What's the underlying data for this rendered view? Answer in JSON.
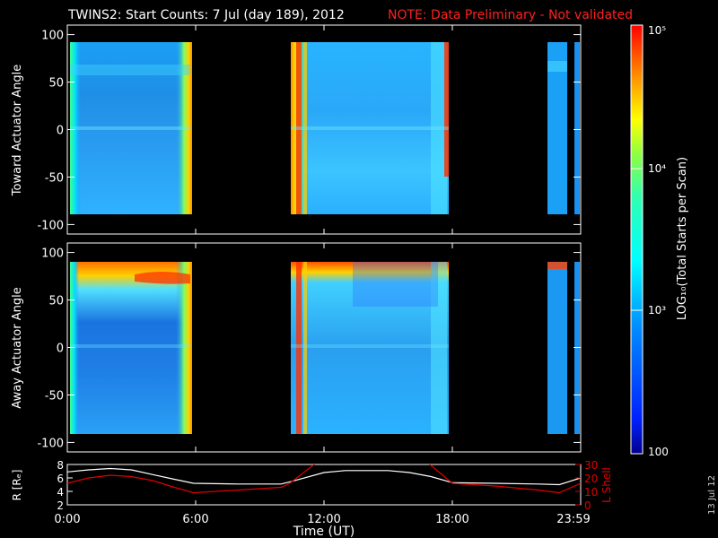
{
  "title": {
    "main": "TWINS2: Start Counts:  7 Jul (day 189), 2012",
    "note": "NOTE: Data Preliminary - Not validated",
    "note_color": "#ff2020"
  },
  "side_label": "13 Jul 12",
  "colorbar": {
    "label": "LOG₁₀(Total Starts per Scan)",
    "ticks": [
      "10⁵",
      "10⁴",
      "10³",
      "100"
    ]
  },
  "x_axis": {
    "label": "Time (UT)",
    "ticks": [
      "0:00",
      "6:00",
      "12:00",
      "18:00",
      "23:59"
    ]
  },
  "chart_data": [
    {
      "type": "heatmap",
      "ylabel": "Toward Actuator Angle",
      "ylim": [
        -110,
        110
      ],
      "yticks": [
        100,
        50,
        0,
        -50,
        -100
      ],
      "xlim_hours": [
        0,
        24
      ],
      "color_scale": "log",
      "zlim": [
        100,
        100000
      ],
      "data_intervals_hours": [
        [
          0.0,
          5.8
        ],
        [
          10.4,
          18.0
        ],
        [
          22.8,
          23.8
        ],
        [
          23.9,
          24.0
        ]
      ],
      "angle_coverage": [
        -88,
        90
      ]
    },
    {
      "type": "heatmap",
      "ylabel": "Away Actuator Angle",
      "ylim": [
        -110,
        110
      ],
      "yticks": [
        100,
        50,
        0,
        -50,
        -100
      ],
      "xlim_hours": [
        0,
        24
      ],
      "color_scale": "log",
      "zlim": [
        100,
        100000
      ],
      "data_intervals_hours": [
        [
          0.0,
          5.8
        ],
        [
          10.4,
          18.0
        ],
        [
          22.8,
          23.8
        ],
        [
          23.9,
          24.0
        ]
      ],
      "angle_coverage": [
        -88,
        90
      ]
    },
    {
      "type": "line",
      "ylabel_left": "R [Rₑ]",
      "ylabel_right": "L Shell",
      "ylim_left": [
        2,
        8
      ],
      "ylim_right": [
        0,
        30
      ],
      "yticks_left": [
        8,
        6,
        4,
        2
      ],
      "yticks_right": [
        30,
        20,
        10,
        0
      ],
      "series": [
        {
          "name": "R",
          "color": "#ffffff",
          "x": [
            0,
            1,
            2,
            3,
            4,
            5,
            5.9,
            8,
            10,
            10.5,
            12,
            13,
            15,
            16,
            17,
            18,
            20,
            22,
            23,
            24
          ],
          "values": [
            6.9,
            7.2,
            7.4,
            7.2,
            6.5,
            5.8,
            5.2,
            5.1,
            5.1,
            5.5,
            6.8,
            7.1,
            7.1,
            6.8,
            6.2,
            5.3,
            5.2,
            5.1,
            5.0,
            6.0
          ]
        },
        {
          "name": "L Shell",
          "color": "#e00000",
          "x": [
            0,
            1,
            2,
            3,
            4,
            5,
            5.9,
            8,
            10,
            10.4,
            11.7,
            16.8,
            18.0,
            20,
            22,
            23,
            24
          ],
          "values": [
            16,
            20,
            22,
            21,
            18,
            13,
            9,
            11,
            13,
            16,
            32,
            32,
            16,
            14,
            11,
            9,
            16
          ]
        }
      ]
    }
  ]
}
